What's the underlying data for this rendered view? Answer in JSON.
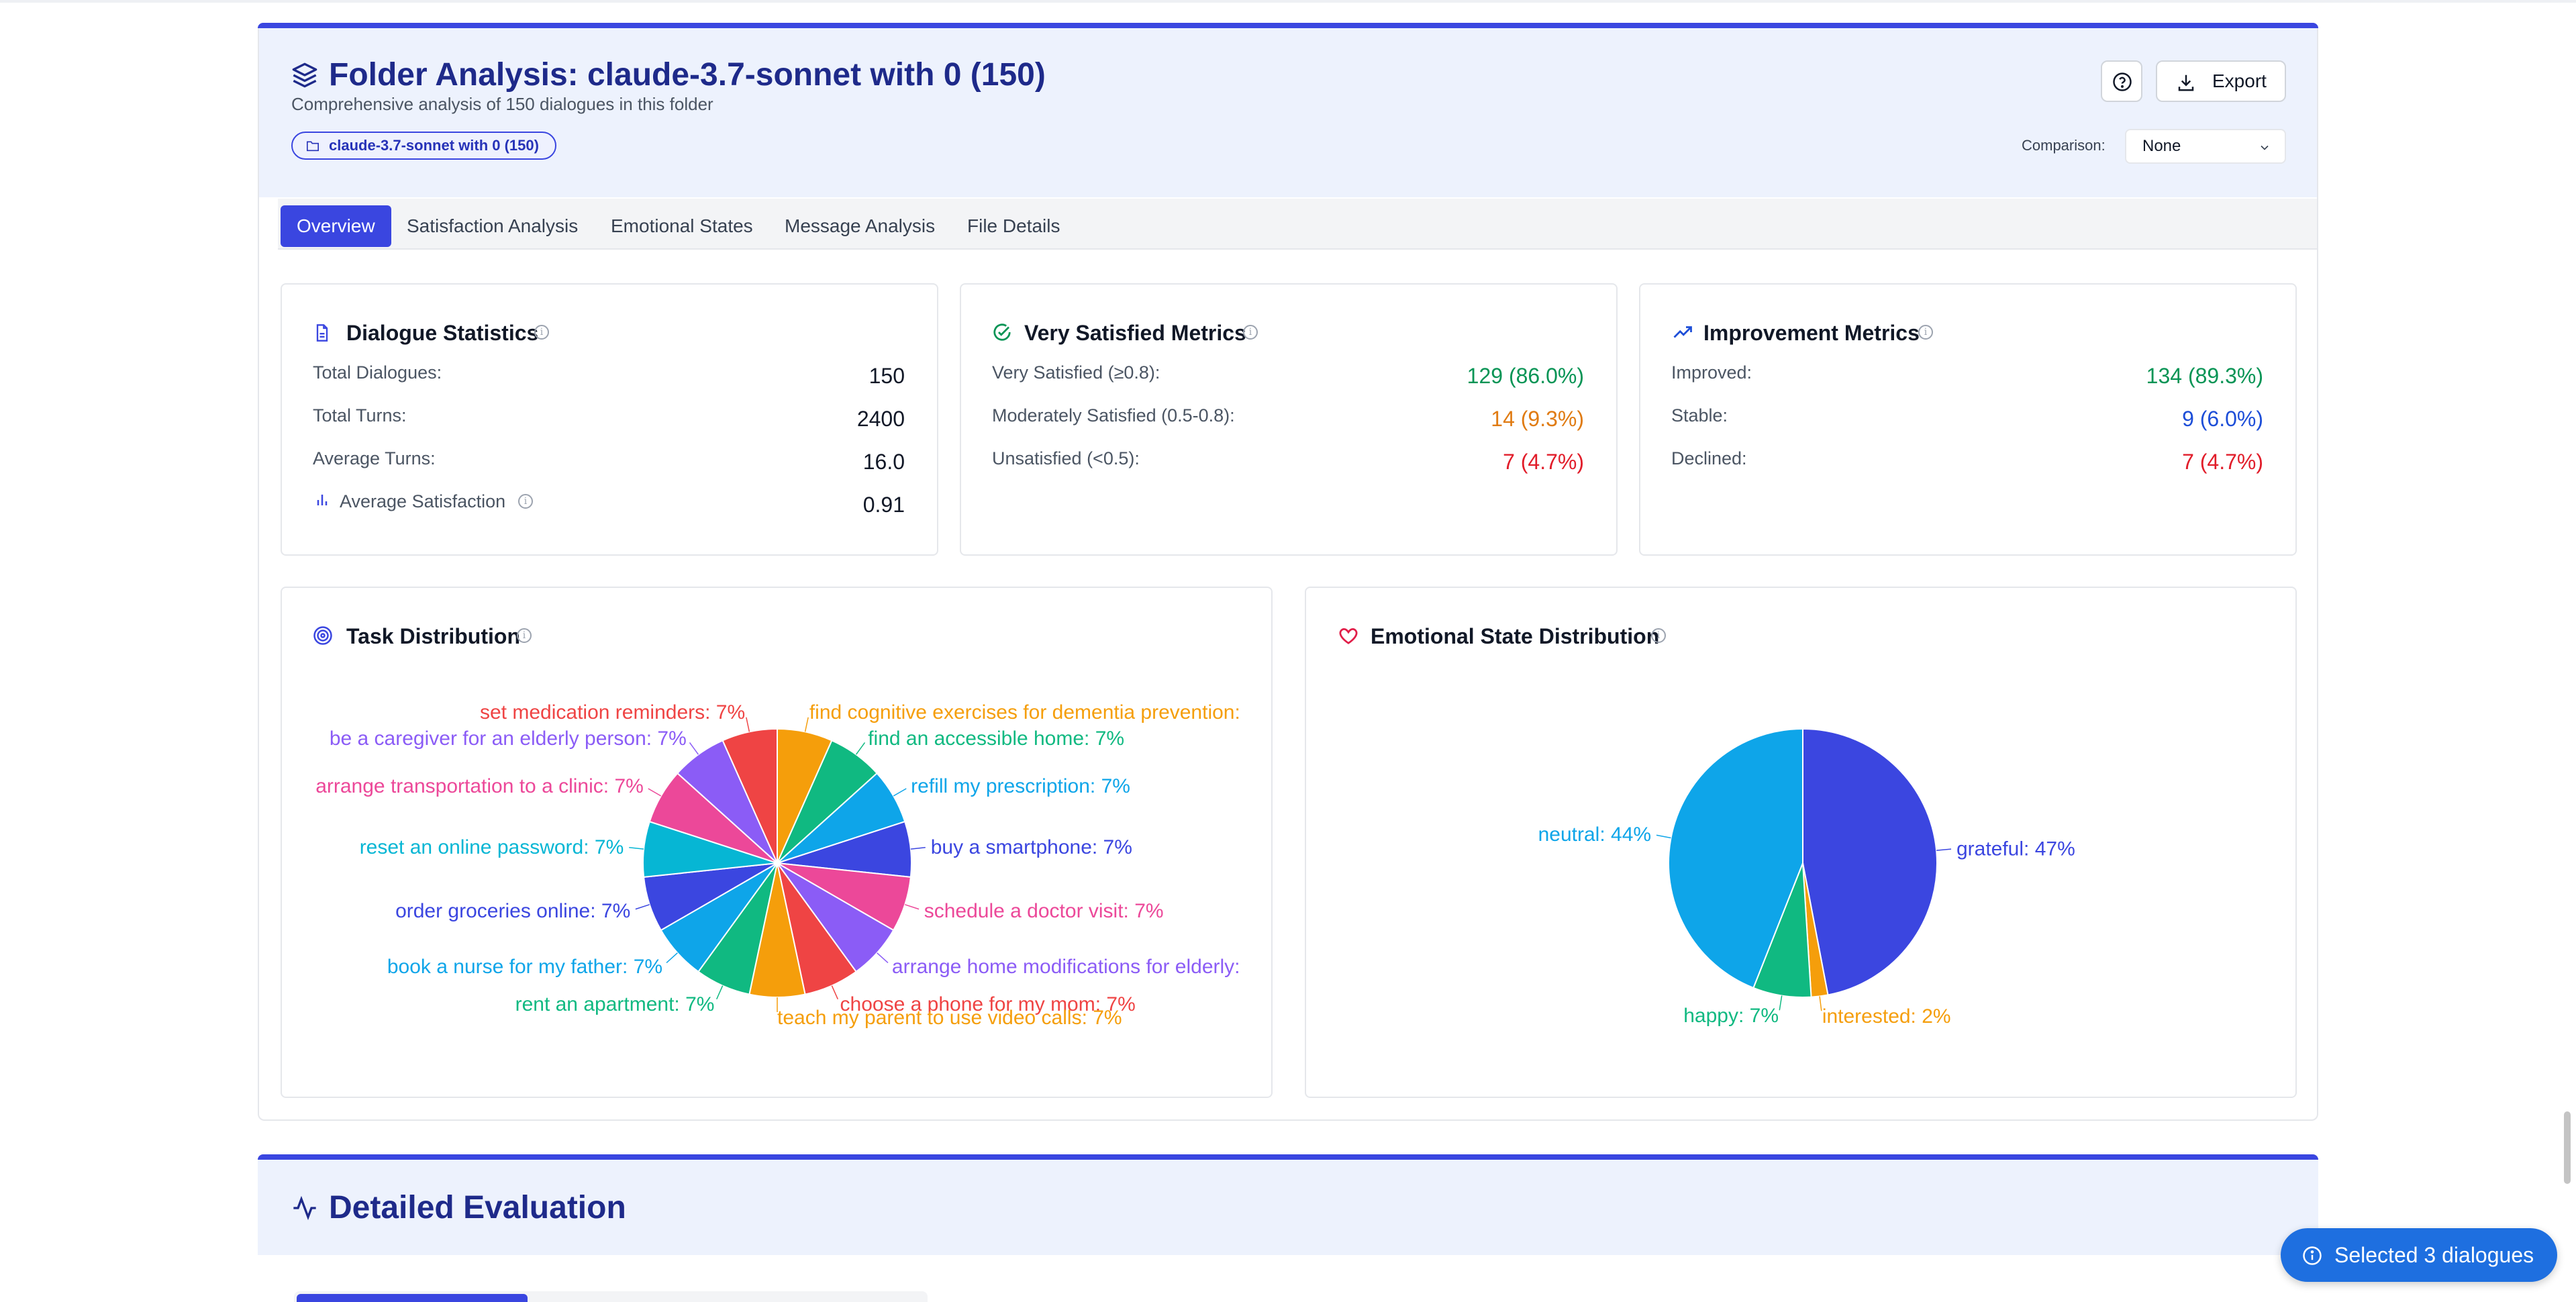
{
  "header": {
    "title": "Folder Analysis: claude-3.7-sonnet with 0 (150)",
    "subtitle": "Comprehensive analysis of 150 dialogues in this folder",
    "folder_badge": "claude-3.7-sonnet with 0 (150)",
    "export_label": "Export",
    "comparison_label": "Comparison:",
    "comparison_value": "None"
  },
  "tabs": [
    {
      "label": "Overview",
      "active": true
    },
    {
      "label": "Satisfaction Analysis"
    },
    {
      "label": "Emotional States"
    },
    {
      "label": "Message Analysis"
    },
    {
      "label": "File Details"
    }
  ],
  "dialogue_stats": {
    "title": "Dialogue Statistics",
    "rows": [
      {
        "label": "Total Dialogues:",
        "value": "150"
      },
      {
        "label": "Total Turns:",
        "value": "2400"
      },
      {
        "label": "Average Turns:",
        "value": "16.0"
      },
      {
        "label": "Average Satisfaction",
        "value": "0.91"
      }
    ]
  },
  "very_satisfied": {
    "title": "Very Satisfied Metrics",
    "rows": [
      {
        "label": "Very Satisfied (≥0.8):",
        "value": "129 (86.0%)"
      },
      {
        "label": "Moderately Satisfied (0.5-0.8):",
        "value": "14 (9.3%)"
      },
      {
        "label": "Unsatisfied (<0.5):",
        "value": "7 (4.7%)"
      }
    ]
  },
  "improvement": {
    "title": "Improvement Metrics",
    "rows": [
      {
        "label": "Improved:",
        "value": "134 (89.3%)"
      },
      {
        "label": "Stable:",
        "value": "9 (6.0%)"
      },
      {
        "label": "Declined:",
        "value": "7 (4.7%)"
      }
    ]
  },
  "colors": {
    "accent": "#3a46e0",
    "green": "#079455",
    "orange": "#e07b12",
    "red": "#e11d2a",
    "blue": "#1d4ed8"
  },
  "chart_data": [
    {
      "type": "pie",
      "title": "Task Distribution",
      "slices": [
        {
          "label": "find cognitive exercises for dementia prevention",
          "value": 7,
          "color": "#f59e0b"
        },
        {
          "label": "find an accessible home",
          "value": 7,
          "color": "#10b981"
        },
        {
          "label": "refill my prescription",
          "value": 7,
          "color": "#0ea5e9"
        },
        {
          "label": "buy a smartphone",
          "value": 7,
          "color": "#3b46e0"
        },
        {
          "label": "schedule a doctor visit",
          "value": 7,
          "color": "#ec4899"
        },
        {
          "label": "arrange home modifications for elderly",
          "value": 7,
          "color": "#8b5cf6"
        },
        {
          "label": "choose a phone for my mom",
          "value": 7,
          "color": "#ef4444"
        },
        {
          "label": "teach my parent to use video calls",
          "value": 7,
          "color": "#f59e0b"
        },
        {
          "label": "rent an apartment",
          "value": 7,
          "color": "#10b981"
        },
        {
          "label": "book a nurse for my father",
          "value": 7,
          "color": "#0ea5e9"
        },
        {
          "label": "order groceries online",
          "value": 7,
          "color": "#3b46e0"
        },
        {
          "label": "reset an online password",
          "value": 7,
          "color": "#06b6d4"
        },
        {
          "label": "arrange transportation to a clinic",
          "value": 7,
          "color": "#ec4899"
        },
        {
          "label": "be a caregiver for an elderly person",
          "value": 7,
          "color": "#8b5cf6"
        },
        {
          "label": "set medication reminders",
          "value": 7,
          "color": "#ef4444"
        }
      ]
    },
    {
      "type": "pie",
      "title": "Emotional State Distribution",
      "slices": [
        {
          "label": "grateful",
          "value": 47,
          "color": "#3b46e0"
        },
        {
          "label": "interested",
          "value": 2,
          "color": "#f59e0b"
        },
        {
          "label": "happy",
          "value": 7,
          "color": "#10b981"
        },
        {
          "label": "neutral",
          "value": 44,
          "color": "#0ea5e9"
        }
      ]
    }
  ],
  "detailed": {
    "title": "Detailed Evaluation"
  },
  "floating": {
    "selected_label": "Selected 3 dialogues"
  }
}
